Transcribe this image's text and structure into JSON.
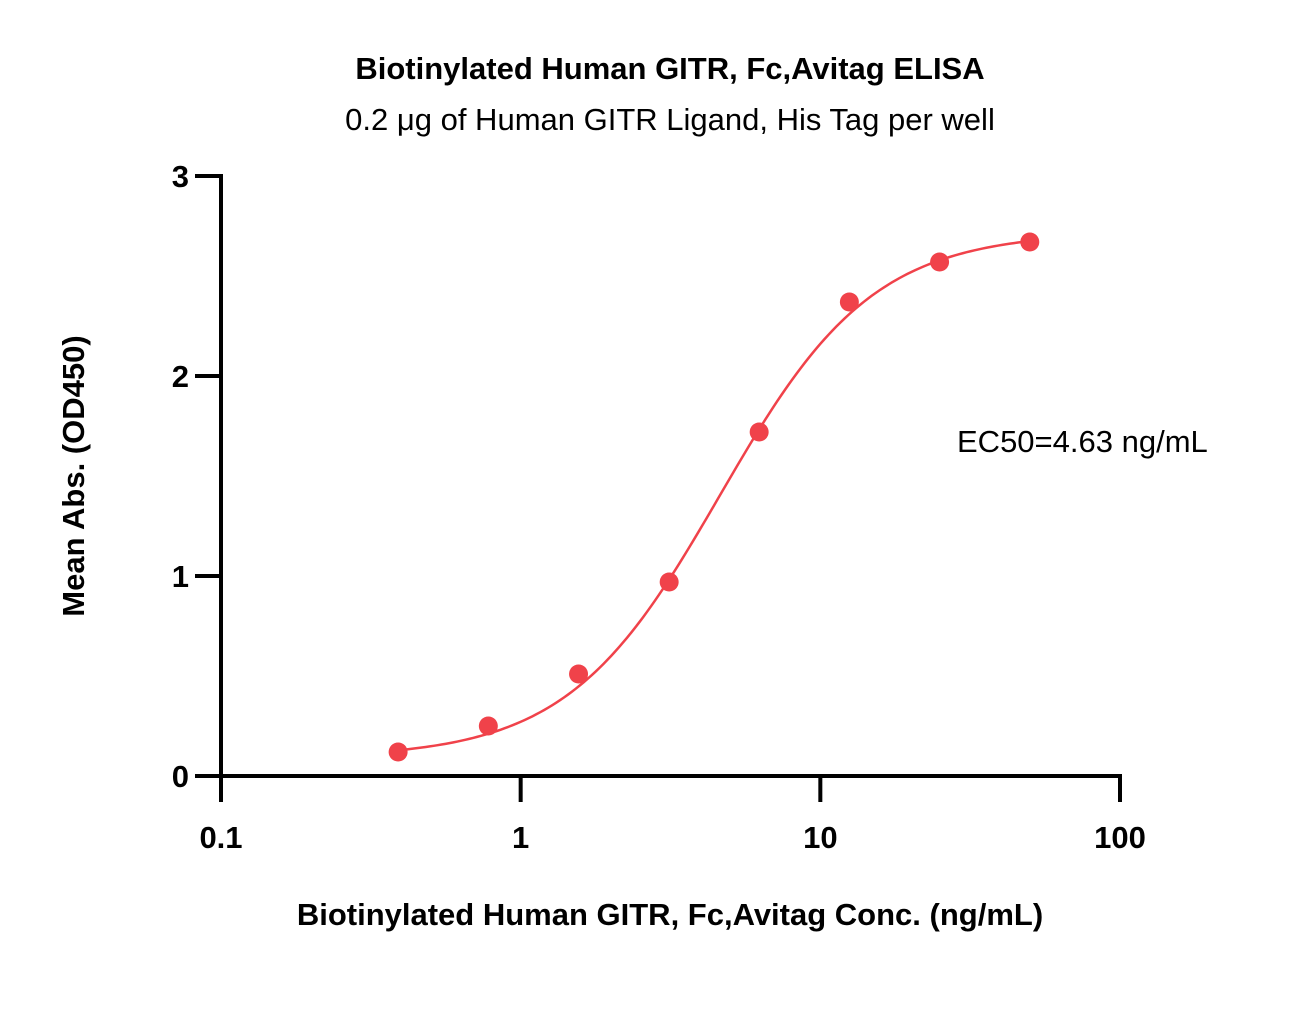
{
  "chart_data": {
    "type": "scatter",
    "title": "Biotinylated Human GITR, Fc,Avitag ELISA",
    "subtitle": "0.2 μg of Human GITR Ligand, His Tag per well",
    "xlabel": "Biotinylated Human GITR, Fc,Avitag Conc. (ng/mL)",
    "ylabel": "Mean Abs. (OD450)",
    "x_scale": "log",
    "xlim": [
      0.1,
      100
    ],
    "ylim": [
      0,
      3
    ],
    "x_ticks": [
      0.1,
      1,
      10,
      100
    ],
    "x_tick_labels": [
      "0.1",
      "1",
      "10",
      "100"
    ],
    "y_ticks": [
      0,
      1,
      2,
      3
    ],
    "y_tick_labels": [
      "0",
      "1",
      "2",
      "3"
    ],
    "grid": false,
    "color": "#f0424a",
    "series": [
      {
        "x": [
          0.39,
          0.78,
          1.56,
          3.13,
          6.25,
          12.5,
          25,
          50
        ],
        "y": [
          0.12,
          0.25,
          0.51,
          0.97,
          1.72,
          2.37,
          2.57,
          2.67
        ]
      }
    ],
    "fit": {
      "model": "4PL",
      "bottom": 0.09,
      "top": 2.72,
      "ec50": 4.63,
      "hill": 1.7
    },
    "annotation": "EC50=4.63 ng/mL"
  }
}
